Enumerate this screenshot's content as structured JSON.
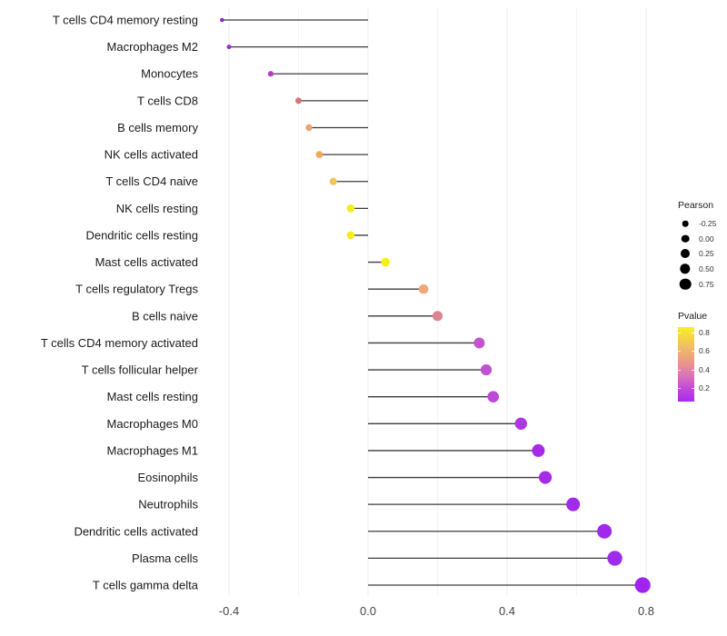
{
  "chart_data": {
    "type": "lollipop",
    "title": "",
    "xlabel": "",
    "ylabel": "",
    "x_tick_values": [
      -0.4,
      0.0,
      0.4,
      0.8
    ],
    "x_tick_labels": [
      "-0.4",
      "0.0",
      "0.4",
      "0.8"
    ],
    "x_minor_grid_values": [
      -0.2,
      0.2,
      0.6
    ],
    "xlim": [
      -0.45,
      0.86
    ],
    "grid": "major and minor vertical gridlines, light gray on white",
    "legend_position": "right",
    "categories": [
      "T cells CD4 memory resting",
      "Macrophages M2",
      "Monocytes",
      "T cells CD8",
      "B cells memory",
      "NK cells activated",
      "T cells CD4 naive",
      "NK cells resting",
      "Dendritic cells resting",
      "Mast cells activated",
      "T cells regulatory  Tregs",
      "B cells naive",
      "T cells CD4 memory activated",
      "T cells follicular helper",
      "Mast cells resting",
      "Macrophages M0",
      "Macrophages M1",
      "Eosinophils",
      "Neutrophils",
      "Dendritic cells activated",
      "Plasma cells",
      "T cells gamma delta"
    ],
    "points": [
      {
        "label": "T cells CD4 memory resting",
        "pearson": -0.42,
        "color": "#8D2BC2",
        "radius": 2.3
      },
      {
        "label": "Macrophages M2",
        "pearson": -0.4,
        "color": "#9430C8",
        "radius": 2.5
      },
      {
        "label": "Monocytes",
        "pearson": -0.28,
        "color": "#B43FBE",
        "radius": 3.1
      },
      {
        "label": "T cells CD8",
        "pearson": -0.2,
        "color": "#D6757B",
        "radius": 3.5
      },
      {
        "label": "B cells memory",
        "pearson": -0.17,
        "color": "#EEA46E",
        "radius": 3.7
      },
      {
        "label": "NK cells activated",
        "pearson": -0.14,
        "color": "#F0A95D",
        "radius": 3.9
      },
      {
        "label": "T cells CD4 naive",
        "pearson": -0.1,
        "color": "#F2C355",
        "radius": 4.1
      },
      {
        "label": "NK cells resting",
        "pearson": -0.05,
        "color": "#F5EB1E",
        "radius": 4.3
      },
      {
        "label": "Dendritic cells resting",
        "pearson": -0.05,
        "color": "#F5EB1E",
        "radius": 4.3
      },
      {
        "label": "Mast cells activated",
        "pearson": 0.05,
        "color": "#F7F013",
        "radius": 4.8
      },
      {
        "label": "T cells regulatory  Tregs",
        "pearson": 0.16,
        "color": "#EFA878",
        "radius": 5.3
      },
      {
        "label": "B cells naive",
        "pearson": 0.2,
        "color": "#DC8590",
        "radius": 5.6
      },
      {
        "label": "T cells CD4 memory activated",
        "pearson": 0.32,
        "color": "#C653CE",
        "radius": 6.0
      },
      {
        "label": "T cells follicular helper",
        "pearson": 0.34,
        "color": "#C24FD4",
        "radius": 6.1
      },
      {
        "label": "Mast cells resting",
        "pearson": 0.36,
        "color": "#BC49D8",
        "radius": 6.3
      },
      {
        "label": "Macrophages M0",
        "pearson": 0.44,
        "color": "#AE38E0",
        "radius": 6.7
      },
      {
        "label": "Macrophages M1",
        "pearson": 0.49,
        "color": "#A72BE4",
        "radius": 7.0
      },
      {
        "label": "Eosinophils",
        "pearson": 0.51,
        "color": "#A52BE6",
        "radius": 7.1
      },
      {
        "label": "Neutrophils",
        "pearson": 0.59,
        "color": "#9F2BE8",
        "radius": 7.5
      },
      {
        "label": "Dendritic cells activated",
        "pearson": 0.68,
        "color": "#A228EA",
        "radius": 8.0
      },
      {
        "label": "Plasma cells",
        "pearson": 0.71,
        "color": "#9E2BEA",
        "radius": 8.2
      },
      {
        "label": "T cells gamma delta",
        "pearson": 0.79,
        "color": "#A023EE",
        "radius": 8.6
      }
    ],
    "stem_color": "#3C3C3C",
    "axis_text_color": "#454545",
    "category_text_color": "#1a1a1a",
    "major_grid_color": "#ECECEC",
    "minor_grid_color": "#F4F4F4",
    "legend_size": {
      "title": "Pearson",
      "dot_color": "#000000",
      "entries": [
        {
          "label": "-0.25",
          "radius": 3.3
        },
        {
          "label": "0.00",
          "radius": 4.3
        },
        {
          "label": "0.25",
          "radius": 5.0
        },
        {
          "label": "0.50",
          "radius": 5.7
        },
        {
          "label": "0.75",
          "radius": 6.3
        }
      ]
    },
    "legend_color": {
      "title": "Pvalue",
      "tick_labels": [
        "0.8",
        "0.6",
        "0.4",
        "0.2"
      ],
      "gradient_stops": [
        {
          "pos": 0,
          "color": "#F8F01F"
        },
        {
          "pos": 22,
          "color": "#F3C45C"
        },
        {
          "pos": 45,
          "color": "#EC9C84"
        },
        {
          "pos": 65,
          "color": "#DA74B8"
        },
        {
          "pos": 82,
          "color": "#C14BD8"
        },
        {
          "pos": 100,
          "color": "#A82BE8"
        }
      ]
    }
  }
}
